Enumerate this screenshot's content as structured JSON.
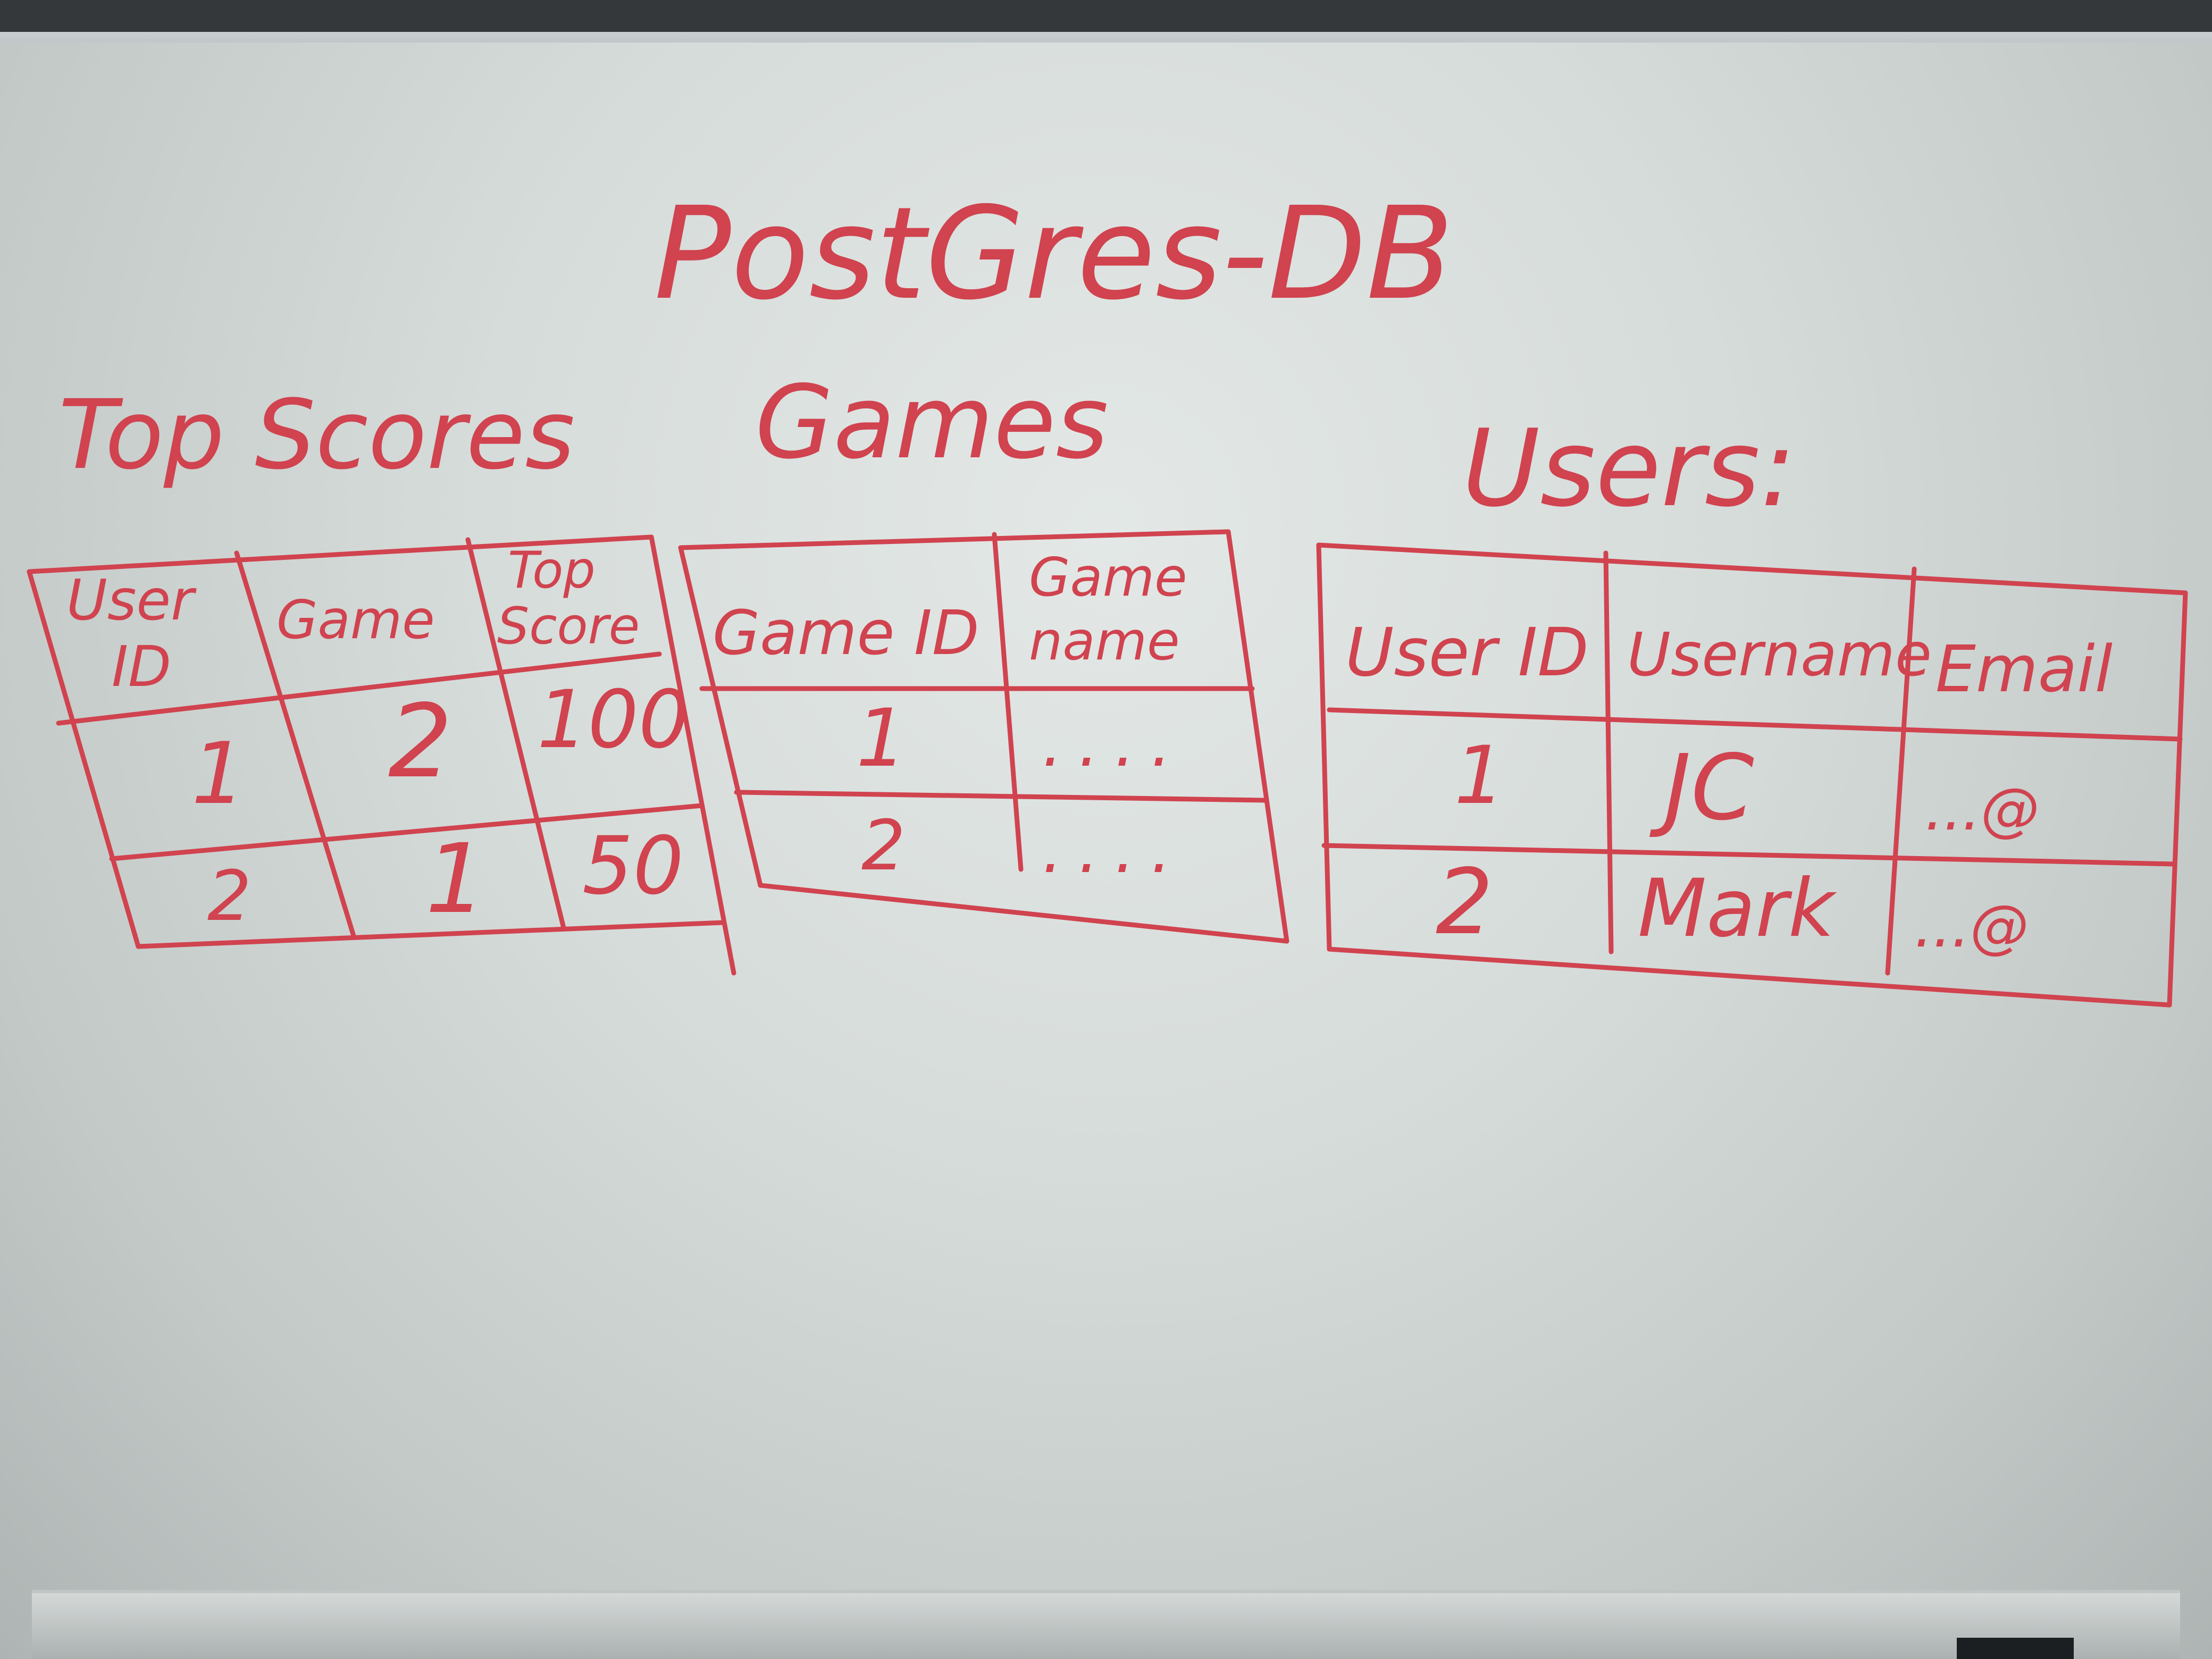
{
  "title": "PostGres-DB",
  "tables": {
    "top_scores": {
      "name": "Top Scores",
      "headers": {
        "user_id": [
          "User",
          "ID"
        ],
        "game": "Game",
        "top_score": [
          "Top",
          "Score"
        ]
      },
      "rows": [
        {
          "user_id": "1",
          "game": "2",
          "top_score": "100"
        },
        {
          "user_id": "2",
          "game": "1",
          "top_score": "50"
        }
      ]
    },
    "games": {
      "name": "Games",
      "headers": {
        "game_id": "Game ID",
        "game_name": [
          "Game",
          "name"
        ]
      },
      "rows": [
        {
          "game_id": "1",
          "game_name": "...."
        },
        {
          "game_id": "2",
          "game_name": "...."
        }
      ]
    },
    "users": {
      "name": "Users:",
      "headers": {
        "user_id": "User ID",
        "username": "Username",
        "email": "Email"
      },
      "rows": [
        {
          "user_id": "1",
          "username": "JC",
          "email": "...@"
        },
        {
          "user_id": "2",
          "username": "Mark",
          "email": "...@"
        }
      ]
    }
  },
  "colors": {
    "ink": "#d0434f",
    "board": "#dce2e0"
  }
}
